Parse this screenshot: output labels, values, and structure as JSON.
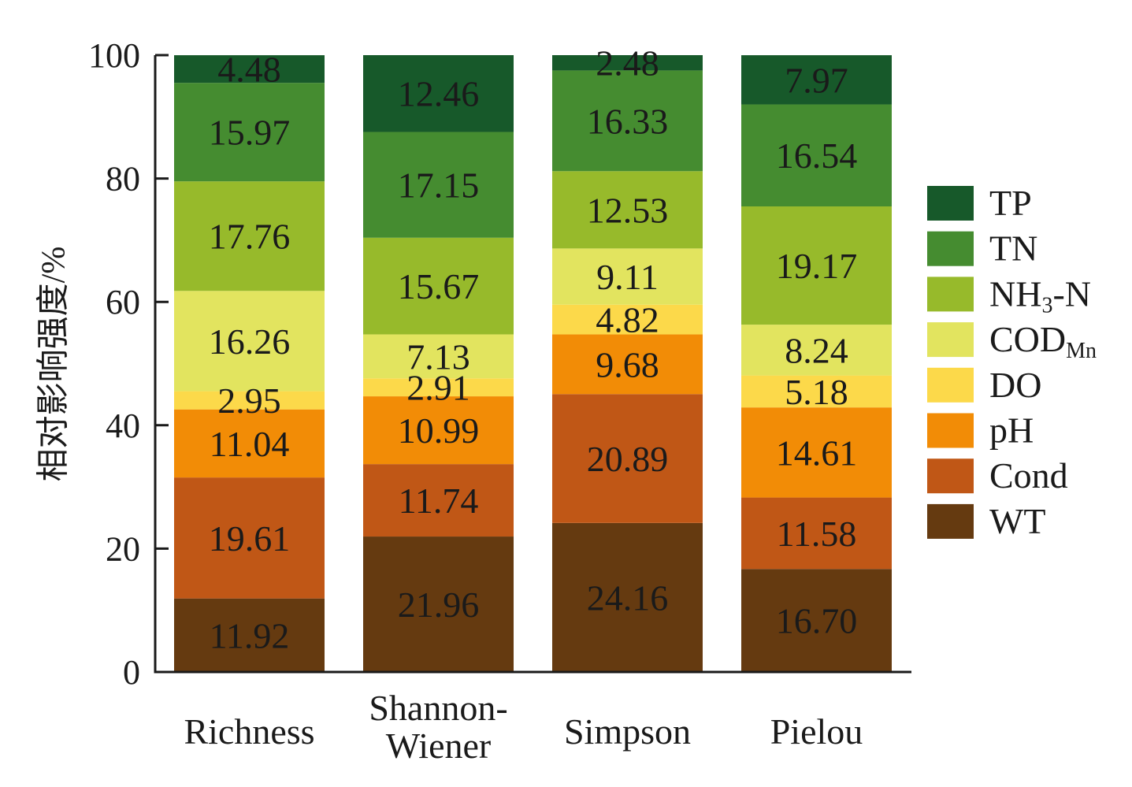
{
  "chart_data": {
    "type": "bar",
    "stacked": true,
    "ylabel": "相对影响强度/%",
    "ylim": [
      0,
      100
    ],
    "yticks": [
      0,
      20,
      40,
      60,
      80,
      100
    ],
    "categories": [
      {
        "lines": [
          "Richness"
        ]
      },
      {
        "lines": [
          "Shannon-",
          "Wiener"
        ]
      },
      {
        "lines": [
          "Simpson"
        ]
      },
      {
        "lines": [
          "Pielou"
        ]
      }
    ],
    "series": [
      {
        "name": "WT",
        "color": "#653a10",
        "values": [
          11.92,
          21.96,
          24.16,
          16.7
        ]
      },
      {
        "name": "Cond",
        "color": "#c05716",
        "values": [
          19.61,
          11.74,
          20.89,
          11.58
        ]
      },
      {
        "name": "pH",
        "color": "#f28c06",
        "values": [
          11.04,
          10.99,
          9.68,
          14.61
        ]
      },
      {
        "name": "DO",
        "color": "#fcd94a",
        "values": [
          2.95,
          2.91,
          4.82,
          5.18
        ]
      },
      {
        "name": "COD",
        "name_sub": "Mn",
        "color": "#e2e45f",
        "values": [
          16.26,
          7.13,
          9.11,
          8.24
        ]
      },
      {
        "name": "NH",
        "name_sub": "3",
        "name_suffix": "-N",
        "color": "#97ba2b",
        "values": [
          17.76,
          15.67,
          12.53,
          19.17
        ]
      },
      {
        "name": "TN",
        "color": "#458c30",
        "values": [
          15.97,
          17.15,
          16.33,
          16.54
        ]
      },
      {
        "name": "TP",
        "color": "#17592a",
        "values": [
          4.48,
          12.46,
          2.48,
          7.97
        ]
      }
    ],
    "value_labels": [
      [
        "11.92",
        "21.96",
        "24.16",
        "16.70"
      ],
      [
        "19.61",
        "11.74",
        "20.89",
        "11.58"
      ],
      [
        "11.04",
        "10.99",
        "9.68",
        "14.61"
      ],
      [
        "2.95",
        "2.91",
        "4.82",
        "5.18"
      ],
      [
        "16.26",
        "7.13",
        "9.11",
        "8.24"
      ],
      [
        "17.76",
        "15.67",
        "12.53",
        "19.17"
      ],
      [
        "15.97",
        "17.15",
        "16.33",
        "16.54"
      ],
      [
        "4.48",
        "12.46",
        "2.48",
        "7.97"
      ]
    ],
    "legend": {
      "position": "right",
      "order": [
        "TP",
        "TN",
        "NH3-N",
        "CODMn",
        "DO",
        "pH",
        "Cond",
        "WT"
      ]
    },
    "grid": false
  }
}
